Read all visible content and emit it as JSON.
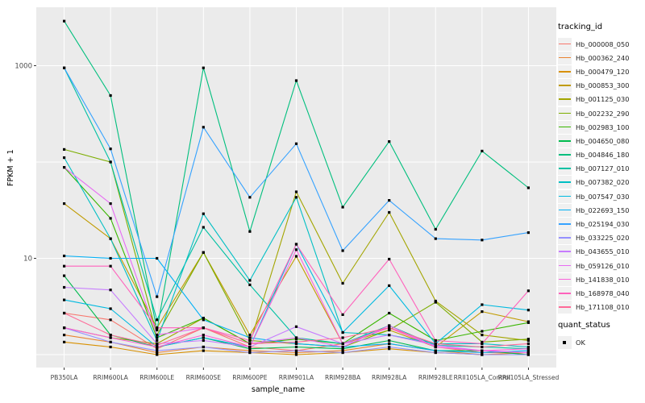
{
  "figure": {
    "y_axis": {
      "title": "FPKM + 1",
      "tick_labels": [
        "1000",
        "10"
      ],
      "tick_values": [
        1000,
        10
      ]
    },
    "x_axis": {
      "title": "sample_name"
    },
    "legend": {
      "tracking_title": "tracking_id",
      "quant_title": "quant_status",
      "quant_items": [
        {
          "label": "OK"
        }
      ]
    },
    "colors": {
      "panel_bg": "#EBEBEB",
      "grid": "#FFFFFF",
      "key_bg": "#F0F0F0",
      "tick_text": "#4D4D4D",
      "axis_text": "#000000",
      "point": "#000000"
    }
  },
  "chart_data": {
    "type": "line",
    "title": "",
    "xlabel": "sample_name",
    "ylabel": "FPKM + 1",
    "x_scale": "categorical",
    "y_scale": "log10",
    "ylim": [
      0.9,
      3500
    ],
    "y_ticks_labeled": [
      1000,
      10
    ],
    "y_gridlines": [
      1000,
      100,
      10,
      1
    ],
    "grid": "on",
    "legend_position": "right",
    "point_marker": {
      "shape": "square",
      "color": "#000000",
      "label": "OK"
    },
    "categories": [
      "PB350LA",
      "RRIM600LA",
      "RRIM600LE",
      "RRIM600SE",
      "RRIM600PE",
      "RRIM901LA",
      "RRIM928BA",
      "RRIM928LA",
      "RRIM928LE",
      "RRII105LA_Control",
      "RRII105LA_Stressed"
    ],
    "series": [
      {
        "name": "Hb_000008_050",
        "color": "#F8766D",
        "values": [
          2.7,
          2.3,
          1.15,
          1.9,
          1.2,
          1.1,
          1.3,
          1.9,
          1.2,
          1.05,
          1.05
        ]
      },
      {
        "name": "Hb_000362_240",
        "color": "#EA8331",
        "values": [
          1.6,
          1.35,
          1.05,
          1.2,
          1.1,
          1.05,
          1.1,
          1.3,
          1.1,
          1.0,
          1.05
        ]
      },
      {
        "name": "Hb_000479_120",
        "color": "#D89000",
        "values": [
          1.35,
          1.2,
          1.0,
          1.1,
          1.05,
          1.0,
          1.05,
          1.15,
          1.05,
          1.0,
          1.0
        ]
      },
      {
        "name": "Hb_000853_300",
        "color": "#C09B00",
        "values": [
          37,
          16,
          1.9,
          11.5,
          1.6,
          10.5,
          1.3,
          1.8,
          1.2,
          2.8,
          2.2
        ]
      },
      {
        "name": "Hb_001125_030",
        "color": "#A3A500",
        "values": [
          1.9,
          1.5,
          1.3,
          2.4,
          1.3,
          49,
          5.5,
          30,
          3.6,
          1.6,
          1.4
        ]
      },
      {
        "name": "Hb_002232_290",
        "color": "#7CAE00",
        "values": [
          135,
          100,
          1.6,
          11.5,
          1.4,
          1.3,
          1.2,
          1.8,
          3.5,
          1.35,
          1.45
        ]
      },
      {
        "name": "Hb_002983_100",
        "color": "#39B600",
        "values": [
          88,
          26,
          1.5,
          2.4,
          1.3,
          1.45,
          1.3,
          2.7,
          1.4,
          1.75,
          2.15
        ]
      },
      {
        "name": "Hb_004650_080",
        "color": "#00BB4E",
        "values": [
          6.6,
          1.6,
          1.2,
          1.5,
          1.15,
          1.2,
          1.15,
          1.4,
          1.1,
          1.1,
          1.0
        ]
      },
      {
        "name": "Hb_004846_180",
        "color": "#00BF7D",
        "values": [
          2900,
          490,
          1.8,
          950,
          19,
          700,
          34,
          163,
          20,
          130,
          54
        ]
      },
      {
        "name": "Hb_007127_010",
        "color": "#00C1A3",
        "values": [
          950,
          100,
          2.3,
          21,
          5.3,
          1.5,
          1.3,
          2.0,
          1.25,
          1.2,
          1.15
        ]
      },
      {
        "name": "Hb_007382_020",
        "color": "#00BFC4",
        "values": [
          111,
          16,
          1.4,
          29,
          5.9,
          43,
          1.7,
          1.6,
          1.3,
          1.3,
          1.2
        ]
      },
      {
        "name": "Hb_007547_030",
        "color": "#00BAE0",
        "values": [
          3.7,
          3.0,
          1.2,
          1.5,
          1.2,
          14,
          1.7,
          5.2,
          1.3,
          3.3,
          2.9
        ]
      },
      {
        "name": "Hb_022693_150",
        "color": "#00B0F6",
        "values": [
          10.6,
          10,
          10,
          2.3,
          1.5,
          1.3,
          1.2,
          1.3,
          1.1,
          1.05,
          1.1
        ]
      },
      {
        "name": "Hb_025194_030",
        "color": "#35A2FF",
        "values": [
          950,
          137,
          4,
          230,
          43,
          155,
          12,
          40,
          16,
          15.5,
          18.5
        ]
      },
      {
        "name": "Hb_033225_020",
        "color": "#9590FF",
        "values": [
          1.9,
          1.35,
          1.1,
          1.2,
          1.05,
          1.1,
          1.05,
          1.2,
          1.05,
          1.0,
          1.0
        ]
      },
      {
        "name": "Hb_043655_010",
        "color": "#C77CFF",
        "values": [
          5.0,
          4.7,
          1.3,
          1.4,
          1.2,
          1.95,
          1.3,
          1.6,
          1.25,
          1.1,
          1.05
        ]
      },
      {
        "name": "Hb_059126_010",
        "color": "#E76BF3",
        "values": [
          88,
          37,
          1.6,
          1.9,
          1.3,
          1.5,
          1.2,
          2.0,
          1.2,
          1.1,
          1.05
        ]
      },
      {
        "name": "Hb_141838_010",
        "color": "#FA62DB",
        "values": [
          1.9,
          1.5,
          1.2,
          1.6,
          1.2,
          12.3,
          1.3,
          1.9,
          1.2,
          1.1,
          1.15
        ]
      },
      {
        "name": "Hb_168978_040",
        "color": "#FF62BC",
        "values": [
          8.3,
          8.3,
          1.9,
          1.9,
          1.4,
          14,
          2.6,
          9.8,
          1.4,
          1.3,
          4.6
        ]
      },
      {
        "name": "Hb_171108_010",
        "color": "#FF6A98",
        "values": [
          2.7,
          1.6,
          1.25,
          1.9,
          1.3,
          1.35,
          1.5,
          1.9,
          1.3,
          1.2,
          1.3
        ]
      }
    ]
  }
}
